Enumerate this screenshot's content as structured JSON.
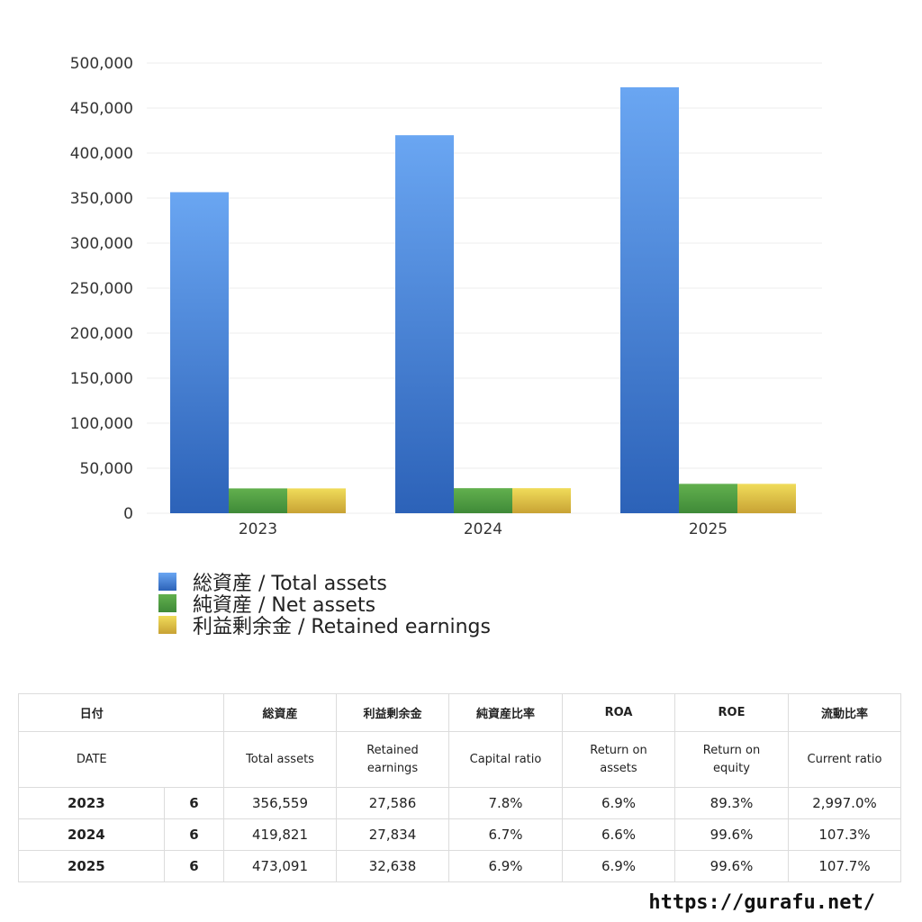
{
  "chart_data": {
    "type": "bar",
    "categories": [
      "2023",
      "2024",
      "2025"
    ],
    "series": [
      {
        "name": "総資産 / Total assets",
        "values": [
          356559,
          419821,
          473091
        ],
        "color": "#4f8fe0"
      },
      {
        "name": "純資産 / Net assets",
        "values": [
          27586,
          27834,
          32638
        ],
        "color": "#5aa64a"
      },
      {
        "name": "利益剰余金 / Retained earnings",
        "values": [
          27586,
          27834,
          32638
        ],
        "color": "#e0c84a"
      }
    ],
    "ylim": [
      0,
      500000
    ],
    "yticks": [
      "0",
      "50,000",
      "100,000",
      "150,000",
      "200,000",
      "250,000",
      "300,000",
      "350,000",
      "400,000",
      "450,000",
      "500,000"
    ],
    "grid": true,
    "legend_position": "bottom-left"
  },
  "legend": [
    {
      "label": "総資産 / Total assets"
    },
    {
      "label": "純資産 / Net assets"
    },
    {
      "label": "利益剰余金 / Retained earnings"
    }
  ],
  "table": {
    "headers_ja": [
      "日付",
      "総資産",
      "利益剰余金",
      "純資産比率",
      "ROA",
      "ROE",
      "流動比率"
    ],
    "headers_en": [
      "DATE",
      "Total assets",
      "Retained earnings",
      "Capital ratio",
      "Return on assets",
      "Return on equity",
      "Current ratio"
    ],
    "rows": [
      {
        "year": "2023",
        "month": "6",
        "total_assets": "356,559",
        "retained": "27,586",
        "capital_ratio": "7.8%",
        "roa": "6.9%",
        "roe": "89.3%",
        "current_ratio": "2,997.0%"
      },
      {
        "year": "2024",
        "month": "6",
        "total_assets": "419,821",
        "retained": "27,834",
        "capital_ratio": "6.7%",
        "roa": "6.6%",
        "roe": "99.6%",
        "current_ratio": "107.3%"
      },
      {
        "year": "2025",
        "month": "6",
        "total_assets": "473,091",
        "retained": "32,638",
        "capital_ratio": "6.9%",
        "roa": "6.9%",
        "roe": "99.6%",
        "current_ratio": "107.7%"
      }
    ]
  },
  "footer": {
    "url": "https://gurafu.net/"
  }
}
